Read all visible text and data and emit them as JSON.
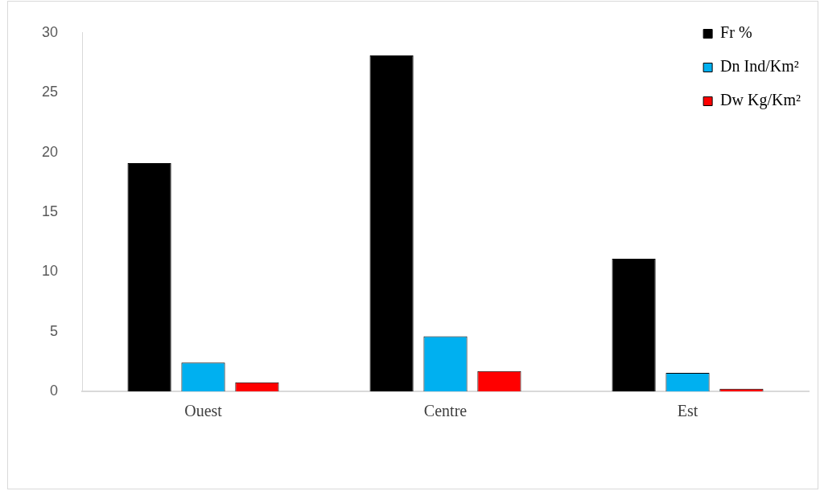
{
  "chart_data": {
    "type": "bar",
    "categories": [
      "Ouest",
      "Centre",
      "Est"
    ],
    "series": [
      {
        "name": "Fr %",
        "color": "#000000",
        "values": [
          19.1,
          28.1,
          11.1
        ]
      },
      {
        "name": "Dn Ind/Km²",
        "color": "#00b0f0",
        "values": [
          2.4,
          4.6,
          1.55
        ]
      },
      {
        "name": "Dw Kg/Km²",
        "color": "#ff0000",
        "values": [
          0.75,
          1.7,
          0.22
        ]
      }
    ],
    "ylim": [
      0,
      30
    ],
    "yticks": [
      0,
      5,
      10,
      15,
      20,
      25,
      30
    ],
    "grid": false,
    "legend": "top right"
  }
}
